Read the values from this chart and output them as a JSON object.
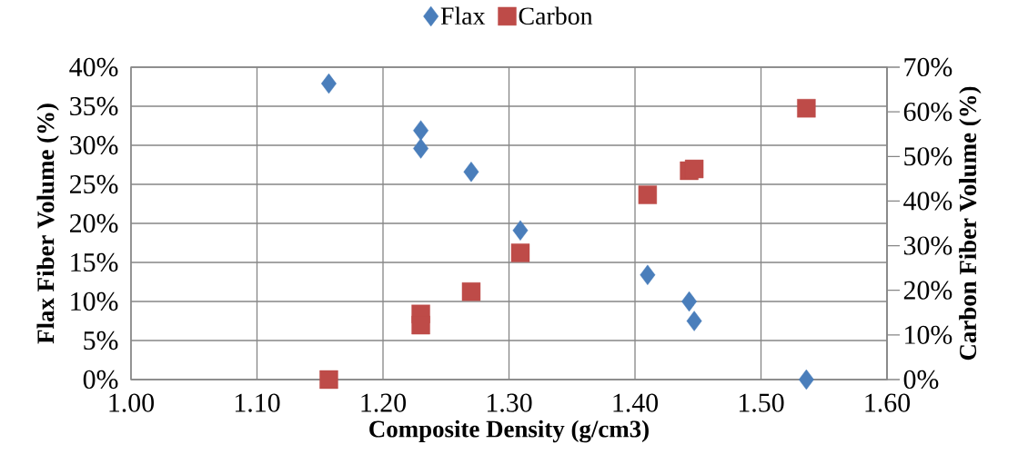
{
  "chart_data": {
    "type": "scatter",
    "xlabel": "Composite Density (g/cm3)",
    "ylabel": "Flax Fiber Volume (%)",
    "y2label": "Carbon Fiber Volume (%)",
    "x": [
      1.157,
      1.23,
      1.23,
      1.27,
      1.309,
      1.41,
      1.443,
      1.447,
      1.536
    ],
    "series": [
      {
        "name": "Flax",
        "color": "#4a7ebb",
        "marker": "diamond",
        "values": [
          37.9,
          31.9,
          29.6,
          26.6,
          19.1,
          13.4,
          10.0,
          7.5,
          0
        ]
      },
      {
        "name": "Carbon",
        "color": "#be4b48",
        "marker": "square",
        "axis": "y2",
        "values": [
          0,
          14.7,
          12.2,
          19.7,
          28.4,
          41.4,
          46.8,
          47.2,
          60.8
        ]
      }
    ],
    "xlim": [
      1.0,
      1.6
    ],
    "xticks": [
      {
        "value": 1.0,
        "label": "1.00"
      },
      {
        "value": 1.1,
        "label": "1.10"
      },
      {
        "value": 1.2,
        "label": "1.20"
      },
      {
        "value": 1.3,
        "label": "1.30"
      },
      {
        "value": 1.4,
        "label": "1.40"
      },
      {
        "value": 1.5,
        "label": "1.50"
      },
      {
        "value": 1.6,
        "label": "1.60"
      }
    ],
    "ylim": [
      0,
      40
    ],
    "yticks": [
      {
        "value": 0,
        "label": "0%"
      },
      {
        "value": 5,
        "label": "5%"
      },
      {
        "value": 10,
        "label": "10%"
      },
      {
        "value": 15,
        "label": "15%"
      },
      {
        "value": 20,
        "label": "20%"
      },
      {
        "value": 25,
        "label": "25%"
      },
      {
        "value": 30,
        "label": "30%"
      },
      {
        "value": 35,
        "label": "35%"
      },
      {
        "value": 40,
        "label": "40%"
      }
    ],
    "y2lim": [
      0,
      70
    ],
    "y2ticks": [
      {
        "value": 0,
        "label": "0%"
      },
      {
        "value": 10,
        "label": "10%"
      },
      {
        "value": 20,
        "label": "20%"
      },
      {
        "value": 30,
        "label": "30%"
      },
      {
        "value": 40,
        "label": "40%"
      },
      {
        "value": 50,
        "label": "50%"
      },
      {
        "value": 60,
        "label": "60%"
      },
      {
        "value": 70,
        "label": "70%"
      }
    ],
    "grid": true,
    "legend": "top"
  }
}
